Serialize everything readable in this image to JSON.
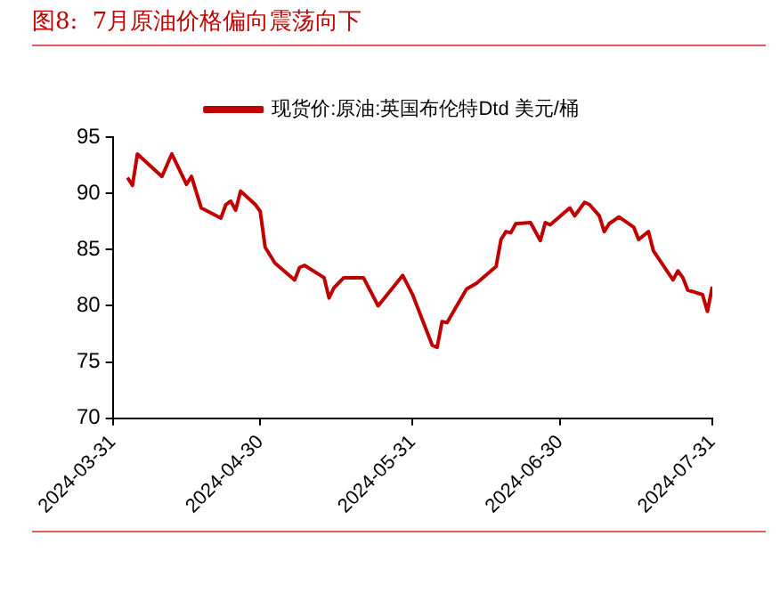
{
  "chart_data": {
    "type": "line",
    "title": "图8:  7月原油价格偏向震荡向下",
    "x": [
      "2024-04-03",
      "2024-04-04",
      "2024-04-05",
      "2024-04-10",
      "2024-04-12",
      "2024-04-15",
      "2024-04-16",
      "2024-04-18",
      "2024-04-22",
      "2024-04-23",
      "2024-04-24",
      "2024-04-25",
      "2024-04-26",
      "2024-04-29",
      "2024-04-30",
      "2024-05-01",
      "2024-05-03",
      "2024-05-07",
      "2024-05-08",
      "2024-05-09",
      "2024-05-13",
      "2024-05-14",
      "2024-05-15",
      "2024-05-17",
      "2024-05-21",
      "2024-05-24",
      "2024-05-29",
      "2024-05-31",
      "2024-06-04",
      "2024-06-05",
      "2024-06-06",
      "2024-06-07",
      "2024-06-11",
      "2024-06-13",
      "2024-06-17",
      "2024-06-18",
      "2024-06-19",
      "2024-06-20",
      "2024-06-21",
      "2024-06-24",
      "2024-06-26",
      "2024-06-27",
      "2024-06-28",
      "2024-07-02",
      "2024-07-03",
      "2024-07-05",
      "2024-07-06",
      "2024-07-08",
      "2024-07-09",
      "2024-07-10",
      "2024-07-12",
      "2024-07-15",
      "2024-07-16",
      "2024-07-18",
      "2024-07-19",
      "2024-07-23",
      "2024-07-24",
      "2024-07-25",
      "2024-07-26",
      "2024-07-29",
      "2024-07-30",
      "2024-07-31"
    ],
    "series": [
      {
        "name": "现货价:原油:英国布伦特Dtd 美元/桶",
        "color": "#c00000",
        "values": [
          91.4,
          90.7,
          93.5,
          91.5,
          93.5,
          90.8,
          91.5,
          88.7,
          87.8,
          89,
          89.3,
          88.5,
          90.2,
          89,
          88.4,
          85.2,
          83.8,
          82.3,
          83.4,
          83.6,
          82.5,
          80.7,
          81.6,
          82.5,
          82.5,
          80,
          82.7,
          81,
          76.5,
          76.3,
          78.6,
          78.5,
          81.5,
          82,
          83.5,
          85.9,
          86.6,
          86.5,
          87.3,
          87.4,
          85.8,
          87.4,
          87.2,
          88.7,
          88,
          89.2,
          89,
          88,
          86.6,
          87.3,
          87.9,
          87,
          85.9,
          86.6,
          84.9,
          82.3,
          83.1,
          82.5,
          81.4,
          81,
          79.5,
          81.7
        ]
      }
    ],
    "xlim": [
      "2024-03-31",
      "2024-07-31"
    ],
    "xticks": [
      "2024-03-31",
      "2024-04-30",
      "2024-05-31",
      "2024-06-30",
      "2024-07-31"
    ],
    "ylim": [
      70,
      95
    ],
    "yticks": [
      70,
      75,
      80,
      85,
      90,
      95
    ],
    "grid": false,
    "legend": "top",
    "marker": "none",
    "line_style": "solid"
  }
}
